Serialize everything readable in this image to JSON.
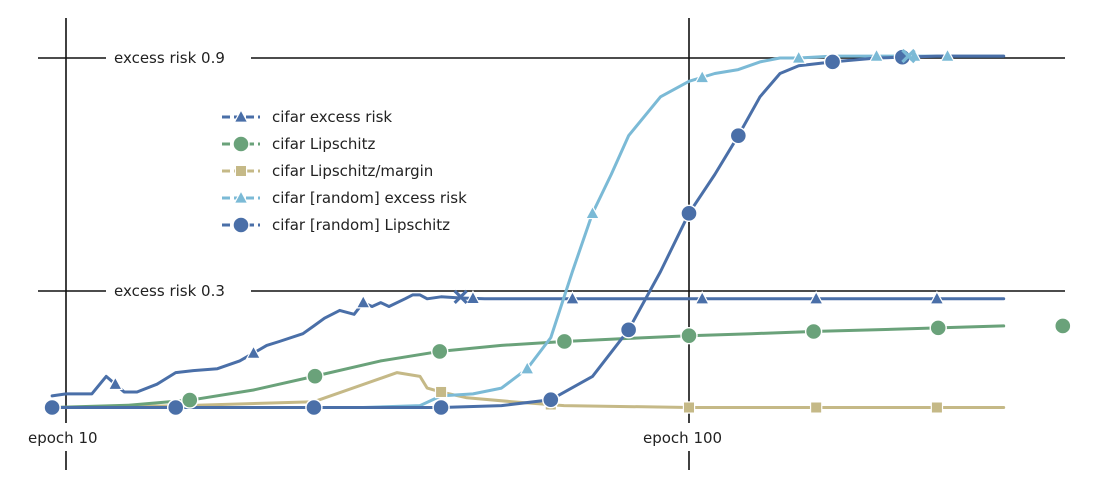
{
  "chart_data": {
    "type": "line",
    "x_scale": "log",
    "x_ticks": [
      {
        "value": 10,
        "label": "epoch 10"
      },
      {
        "value": 100,
        "label": "epoch 100"
      }
    ],
    "y_ref_lines": [
      {
        "value": 0.9,
        "label": "excess risk 0.9"
      },
      {
        "value": 0.3,
        "label": "excess risk 0.3"
      }
    ],
    "legend": {
      "placement": "upper-left"
    },
    "series": [
      {
        "name": "cifar excess risk",
        "color": "#4a6fa8",
        "marker": "triangle",
        "x": [
          9.5,
          10,
          11,
          11.6,
          12,
          12.4,
          13,
          14,
          15,
          16,
          17.5,
          19,
          20,
          21,
          22,
          24,
          25,
          26,
          27.5,
          29,
          30,
          31,
          32,
          33,
          35,
          36,
          37,
          38,
          40,
          43,
          47,
          55,
          65,
          90,
          150,
          200,
          280,
          320
        ],
        "y": [
          0.03,
          0.035,
          0.035,
          0.08,
          0.06,
          0.04,
          0.04,
          0.06,
          0.09,
          0.095,
          0.1,
          0.12,
          0.14,
          0.16,
          0.17,
          0.19,
          0.21,
          0.23,
          0.25,
          0.24,
          0.27,
          0.26,
          0.27,
          0.26,
          0.28,
          0.29,
          0.29,
          0.28,
          0.285,
          0.282,
          0.28,
          0.28,
          0.28,
          0.28,
          0.28,
          0.28,
          0.28,
          0.28
        ],
        "markers_x": [
          12,
          20,
          30,
          45,
          65,
          105,
          160,
          250
        ]
      },
      {
        "name": "cifar Lipschitz",
        "color": "#6aa27a",
        "marker": "circle",
        "x": [
          9.5,
          12.6,
          16,
          20,
          25,
          32,
          40,
          50,
          63,
          80,
          100,
          126,
          160,
          200,
          251,
          320
        ],
        "y": [
          0.0,
          0.006,
          0.02,
          0.045,
          0.08,
          0.12,
          0.145,
          0.16,
          0.17,
          0.178,
          0.185,
          0.19,
          0.196,
          0.2,
          0.205,
          0.21
        ],
        "markers_x": [
          9.5,
          15.8,
          25.1,
          39.8,
          63.1,
          100,
          158.5,
          251.2,
          398.1
        ]
      },
      {
        "name": "cifar Lipschitz/margin",
        "color": "#c5b987",
        "marker": "square",
        "x": [
          9.5,
          15,
          25,
          34,
          37,
          38,
          40,
          44,
          52,
          63,
          100,
          160,
          250,
          320
        ],
        "y": [
          0.0,
          0.004,
          0.015,
          0.09,
          0.08,
          0.05,
          0.04,
          0.025,
          0.015,
          0.005,
          0.0,
          0.0,
          0.0,
          0.0
        ],
        "markers_x": [
          40,
          60,
          100,
          160,
          250
        ]
      },
      {
        "name": "cifar [random] excess risk",
        "color": "#7bbad6",
        "marker": "triangle",
        "x": [
          9.5,
          30,
          37,
          40,
          45,
          50,
          55,
          60,
          65,
          70,
          75,
          80,
          90,
          100,
          110,
          120,
          130,
          140,
          150,
          170,
          200,
          250,
          320
        ],
        "y": [
          0.0,
          0.0,
          0.005,
          0.03,
          0.035,
          0.05,
          0.1,
          0.18,
          0.35,
          0.5,
          0.6,
          0.7,
          0.8,
          0.84,
          0.86,
          0.87,
          0.89,
          0.9,
          0.9,
          0.905,
          0.905,
          0.905,
          0.905
        ],
        "markers_x": [
          55,
          70,
          105,
          150,
          200,
          230,
          260
        ]
      },
      {
        "name": "cifar [random] Lipschitz",
        "color": "#4a6fa8",
        "marker": "circle",
        "x": [
          9.5,
          40,
          50,
          60,
          70,
          80,
          90,
          100,
          110,
          120,
          130,
          140,
          150,
          170,
          200,
          250,
          320
        ],
        "y": [
          0.0,
          0.0,
          0.005,
          0.02,
          0.08,
          0.2,
          0.35,
          0.5,
          0.6,
          0.7,
          0.8,
          0.86,
          0.88,
          0.89,
          0.9,
          0.905,
          0.905
        ],
        "markers_x": [
          9.5,
          15,
          25,
          40,
          60,
          80,
          100,
          120,
          170,
          220
        ]
      }
    ],
    "x_marks": [
      {
        "series": "cifar excess risk",
        "x": 43,
        "y": 0.285
      },
      {
        "series": "cifar [random] excess risk",
        "x": 225,
        "y": 0.905
      }
    ]
  }
}
